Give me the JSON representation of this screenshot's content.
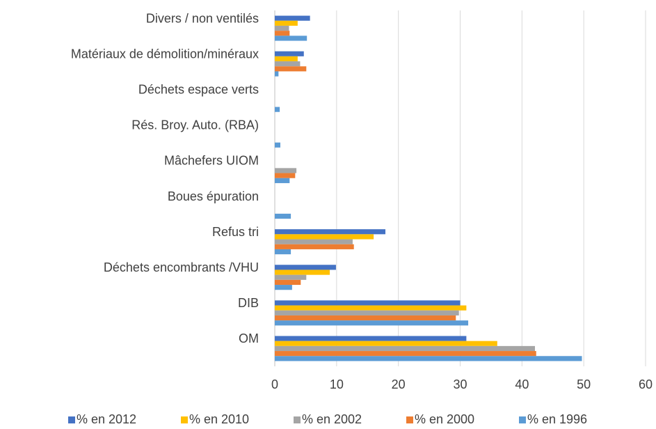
{
  "chart_data": {
    "type": "hbar",
    "categories": [
      "Divers / non ventilés",
      "Matériaux de démolition/minéraux",
      "Déchets espace verts",
      "Rés. Broy. Auto. (RBA)",
      "Mâchefers UIOM",
      "Boues épuration",
      "Refus tri",
      "Déchets encombrants /VHU",
      "DIB",
      "OM"
    ],
    "series": [
      {
        "name": "% en 2012",
        "color": "#4472c4",
        "values": [
          5.7,
          4.7,
          0,
          0,
          0,
          0,
          17.9,
          9.9,
          30,
          31
        ]
      },
      {
        "name": "% en 2010",
        "color": "#ffc000",
        "values": [
          3.7,
          3.7,
          0,
          0,
          0,
          0,
          16,
          8.9,
          31,
          36
        ]
      },
      {
        "name": "% en 2002",
        "color": "#a5a5a5",
        "values": [
          2.3,
          4.1,
          0,
          0,
          3.5,
          0,
          12.6,
          5.1,
          29.8,
          42.1
        ]
      },
      {
        "name": "% en 2000",
        "color": "#ed7d31",
        "values": [
          2.4,
          5.1,
          0,
          0,
          3.3,
          0,
          12.8,
          4.2,
          29.3,
          42.3
        ]
      },
      {
        "name": "% en 1996",
        "color": "#5b9bd5",
        "values": [
          5.2,
          0.6,
          0.8,
          0.9,
          2.4,
          2.6,
          2.6,
          2.8,
          31.3,
          49.7
        ]
      }
    ],
    "xlim": [
      0,
      60
    ],
    "xticks": [
      0,
      10,
      20,
      30,
      40,
      50,
      60
    ],
    "grid": true,
    "legend": "bottom"
  }
}
